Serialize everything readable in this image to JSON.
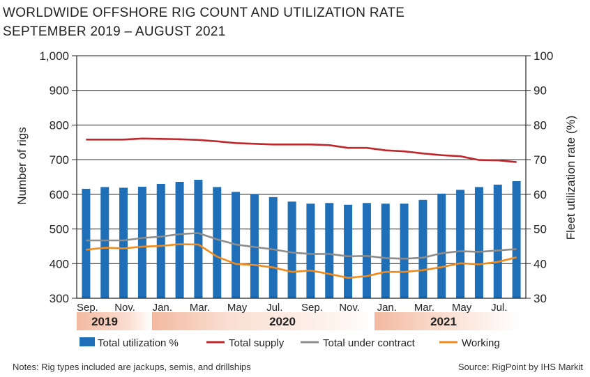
{
  "chart_data": {
    "type": "bar",
    "title_line1": "WORLDWIDE OFFSHORE RIG COUNT AND UTILIZATION RATE",
    "title_line2": "SEPTEMBER 2019 – AUGUST 2021",
    "ylabel_left": "Number of rigs",
    "ylabel_right": "Fleet utilization rate (%)",
    "ylim_left": [
      300,
      1000
    ],
    "ylim_right": [
      30,
      100
    ],
    "yticks_left": [
      "300",
      "400",
      "500",
      "600",
      "700",
      "800",
      "900",
      "1,000"
    ],
    "yticks_right": [
      "30",
      "40",
      "50",
      "60",
      "70",
      "80",
      "90",
      "100"
    ],
    "categories": [
      "Sep 2019",
      "Oct 2019",
      "Nov 2019",
      "Dec 2019",
      "Jan 2020",
      "Feb 2020",
      "Mar 2020",
      "Apr 2020",
      "May 2020",
      "Jun 2020",
      "Jul 2020",
      "Aug 2020",
      "Sep 2020",
      "Oct 2020",
      "Nov 2020",
      "Dec 2020",
      "Jan 2021",
      "Feb 2021",
      "Mar 2021",
      "Apr 2021",
      "May 2021",
      "Jun 2021",
      "Jul 2021",
      "Aug 2021"
    ],
    "xtick_labels": [
      "Sep.",
      "Nov.",
      "Jan.",
      "Mar.",
      "May",
      "Jul.",
      "Sep.",
      "Nov.",
      "Jan.",
      "Mar.",
      "May",
      "Jul."
    ],
    "years": [
      "2019",
      "2020",
      "2021"
    ],
    "series": [
      {
        "name": "Total utilization %",
        "type": "bar",
        "axis": "right",
        "color": "#1f6fb8",
        "values": [
          61.6,
          62.1,
          61.9,
          62.2,
          63.0,
          63.6,
          64.2,
          62.1,
          60.7,
          60.1,
          59.2,
          57.9,
          57.3,
          57.5,
          57.0,
          57.5,
          57.3,
          57.3,
          58.4,
          60.2,
          61.3,
          62.1,
          62.8,
          63.8
        ]
      },
      {
        "name": "Total supply",
        "type": "line",
        "axis": "left",
        "color": "#c0272d",
        "values": [
          758,
          758,
          758,
          761,
          760,
          759,
          757,
          753,
          748,
          746,
          744,
          744,
          744,
          742,
          734,
          734,
          727,
          724,
          718,
          713,
          710,
          699,
          698,
          693
        ]
      },
      {
        "name": "Total under contract",
        "type": "line",
        "axis": "left",
        "color": "#8c8c8c",
        "values": [
          467,
          467,
          467,
          474,
          478,
          485,
          488,
          470,
          455,
          448,
          441,
          432,
          428,
          428,
          421,
          422,
          416,
          414,
          417,
          430,
          436,
          434,
          438,
          442
        ]
      },
      {
        "name": "Working",
        "type": "line",
        "axis": "left",
        "color": "#f08a1c",
        "values": [
          440,
          446,
          444,
          449,
          451,
          456,
          455,
          420,
          399,
          396,
          389,
          376,
          380,
          370,
          359,
          364,
          376,
          376,
          381,
          390,
          401,
          398,
          405,
          418
        ]
      }
    ],
    "legend_position": "bottom",
    "note": "Notes: Rig types included are jackups, semis, and drillships",
    "source": "Source: RigPoint by IHS Markit"
  }
}
